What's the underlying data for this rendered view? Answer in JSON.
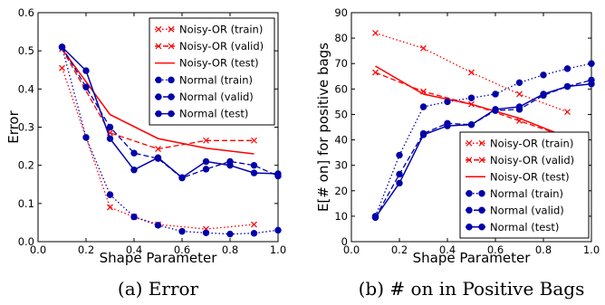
{
  "chart_data": [
    {
      "type": "line",
      "caption": "(a) Error",
      "xlabel": "Shape Parameter",
      "ylabel": "Error",
      "xlim": [
        0.0,
        1.0
      ],
      "ylim": [
        0.0,
        0.6
      ],
      "xticks": [
        "0.0",
        "0.2",
        "0.4",
        "0.6",
        "0.8",
        "1.0"
      ],
      "yticks": [
        "0.0",
        "0.1",
        "0.2",
        "0.3",
        "0.4",
        "0.5",
        "0.6"
      ],
      "legend_position": "top-right",
      "x": [
        0.1,
        0.2,
        0.3,
        0.4,
        0.5,
        0.6,
        0.7,
        0.8,
        0.9,
        1.0
      ],
      "series": [
        {
          "name": "Noisy-OR (train)",
          "color": "#ff0000",
          "style": "dotted",
          "marker": "x",
          "x": [
            0.1,
            0.3,
            0.4,
            0.5,
            0.7,
            0.9
          ],
          "values": [
            0.455,
            0.09,
            0.065,
            0.045,
            0.033,
            0.045
          ]
        },
        {
          "name": "Noisy-OR (valid)",
          "color": "#ff0000",
          "style": "dashed",
          "marker": "x",
          "x": [
            0.1,
            0.3,
            0.5,
            0.7,
            0.9
          ],
          "values": [
            0.505,
            0.285,
            0.243,
            0.265,
            0.265
          ]
        },
        {
          "name": "Noisy-OR (test)",
          "color": "#ff0000",
          "style": "solid",
          "marker": "none",
          "x": [
            0.1,
            0.3,
            0.5,
            0.7,
            0.9
          ],
          "values": [
            0.505,
            0.333,
            0.27,
            0.245,
            0.23
          ]
        },
        {
          "name": "Normal (train)",
          "color": "#0000aa",
          "style": "dotted",
          "marker": "o",
          "x": [
            0.1,
            0.2,
            0.3,
            0.4,
            0.5,
            0.6,
            0.7,
            0.8,
            0.9,
            1.0
          ],
          "values": [
            0.51,
            0.273,
            0.123,
            0.065,
            0.043,
            0.027,
            0.023,
            0.02,
            0.022,
            0.03
          ]
        },
        {
          "name": "Normal (valid)",
          "color": "#0000aa",
          "style": "dashed",
          "marker": "o",
          "x": [
            0.1,
            0.2,
            0.3,
            0.4,
            0.5,
            0.6,
            0.7,
            0.8,
            0.9,
            1.0
          ],
          "values": [
            0.51,
            0.405,
            0.3,
            0.232,
            0.218,
            0.167,
            0.19,
            0.21,
            0.2,
            0.172
          ]
        },
        {
          "name": "Normal (test)",
          "color": "#0000aa",
          "style": "solid",
          "marker": "o",
          "x": [
            0.1,
            0.2,
            0.3,
            0.4,
            0.5,
            0.6,
            0.7,
            0.8,
            0.9,
            1.0
          ],
          "values": [
            0.51,
            0.448,
            0.27,
            0.188,
            0.22,
            0.168,
            0.21,
            0.2,
            0.18,
            0.178
          ]
        }
      ]
    },
    {
      "type": "line",
      "caption": "(b) # on in Positive Bags",
      "xlabel": "Shape Parameter",
      "ylabel": "E[# on] for positive bags",
      "xlim": [
        0.0,
        1.0
      ],
      "ylim": [
        0,
        90
      ],
      "xticks": [
        "0.0",
        "0.2",
        "0.4",
        "0.6",
        "0.8",
        "1.0"
      ],
      "yticks": [
        "0",
        "10",
        "20",
        "30",
        "40",
        "50",
        "60",
        "70",
        "80",
        "90"
      ],
      "legend_position": "bottom-right",
      "series": [
        {
          "name": "Noisy-OR (train)",
          "color": "#ff0000",
          "style": "dotted",
          "marker": "x",
          "x": [
            0.1,
            0.3,
            0.5,
            0.7,
            0.9
          ],
          "values": [
            82,
            76,
            66.5,
            58,
            51
          ]
        },
        {
          "name": "Noisy-OR (valid)",
          "color": "#ff0000",
          "style": "dashed",
          "marker": "x",
          "x": [
            0.1,
            0.3,
            0.5,
            0.7,
            0.9
          ],
          "values": [
            66.5,
            59,
            54,
            47.5,
            41
          ]
        },
        {
          "name": "Noisy-OR (test)",
          "color": "#ff0000",
          "style": "solid",
          "marker": "none",
          "x": [
            0.1,
            0.3,
            0.5,
            0.7,
            0.9
          ],
          "values": [
            69,
            58,
            54,
            48.5,
            41
          ]
        },
        {
          "name": "Normal (train)",
          "color": "#0000aa",
          "style": "dotted",
          "marker": "o",
          "x": [
            0.1,
            0.2,
            0.3,
            0.4,
            0.5,
            0.6,
            0.7,
            0.8,
            0.9,
            1.0
          ],
          "values": [
            10,
            34,
            53,
            55,
            56.5,
            58,
            62.5,
            65.5,
            68,
            70
          ]
        },
        {
          "name": "Normal (valid)",
          "color": "#0000aa",
          "style": "dashed",
          "marker": "o",
          "x": [
            0.1,
            0.2,
            0.3,
            0.4,
            0.5,
            0.6,
            0.7,
            0.8,
            0.9,
            1.0
          ],
          "values": [
            9.5,
            26.5,
            42.5,
            46.5,
            46,
            51.5,
            52,
            57.5,
            61,
            63.5
          ]
        },
        {
          "name": "Normal (test)",
          "color": "#0000aa",
          "style": "solid",
          "marker": "o",
          "x": [
            0.1,
            0.2,
            0.3,
            0.4,
            0.5,
            0.6,
            0.7,
            0.8,
            0.9,
            1.0
          ],
          "values": [
            9.5,
            23,
            42,
            45.5,
            46,
            52,
            53,
            58,
            61,
            62
          ]
        }
      ]
    }
  ]
}
